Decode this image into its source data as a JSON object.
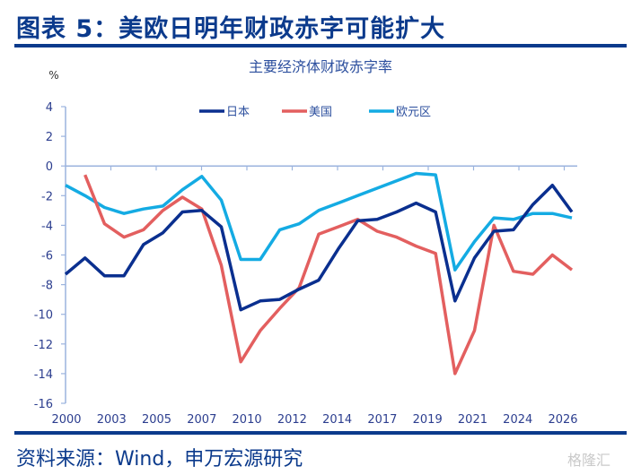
{
  "header": {
    "title": "图表 5：美欧日明年财政赤字可能扩大"
  },
  "footer": {
    "source": "资料来源：Wind，申万宏源研究",
    "watermark": "格隆汇"
  },
  "chart_data": {
    "type": "line",
    "title": "主要经济体财政赤字率",
    "ylabel": "%",
    "xlabel": "",
    "ylim": [
      -16,
      4
    ],
    "yticks": [
      4,
      2,
      0,
      -2,
      -4,
      -6,
      -8,
      -10,
      -12,
      -14,
      -16
    ],
    "xtick_labels": [
      "2000",
      "2003",
      "2005",
      "2007",
      "2010",
      "2012",
      "2014",
      "2017",
      "2019",
      "2021",
      "2024",
      "2026"
    ],
    "legend_position": "top-center",
    "x": [
      2000,
      2001,
      2002,
      2003,
      2004,
      2005,
      2006,
      2007,
      2008,
      2009,
      2010,
      2011,
      2012,
      2013,
      2014,
      2015,
      2016,
      2017,
      2018,
      2019,
      2020,
      2021,
      2022,
      2023,
      2024,
      2025,
      2026
    ],
    "series": [
      {
        "name": "日本",
        "color": "#0a2f8f",
        "values": [
          -7.3,
          -6.2,
          -7.4,
          -7.4,
          -5.3,
          -4.5,
          -3.1,
          -3.0,
          -4.1,
          -9.7,
          -9.1,
          -9.0,
          -8.3,
          -7.7,
          -5.6,
          -3.7,
          -3.6,
          -3.1,
          -2.5,
          -3.1,
          -9.1,
          -6.2,
          -4.4,
          -4.3,
          -2.6,
          -1.3,
          -3.1
        ]
      },
      {
        "name": "美国",
        "color": "#e35f5f",
        "values": [
          null,
          -0.6,
          -3.9,
          -4.8,
          -4.3,
          -3.0,
          -2.1,
          -2.9,
          -6.7,
          -13.2,
          -11.1,
          -9.6,
          -8.2,
          -4.6,
          -4.1,
          -3.6,
          -4.4,
          -4.8,
          -5.4,
          -5.9,
          -14.0,
          -11.1,
          -4.0,
          -7.1,
          -7.3,
          -6.0,
          -7.0
        ]
      },
      {
        "name": "欧元区",
        "color": "#14abe3",
        "values": [
          -1.3,
          -2.0,
          -2.8,
          -3.2,
          -2.9,
          -2.7,
          -1.6,
          -0.7,
          -2.3,
          -6.3,
          -6.3,
          -4.3,
          -3.9,
          -3.0,
          -2.5,
          -2.0,
          -1.5,
          -1.0,
          -0.5,
          -0.6,
          -7.0,
          -5.1,
          -3.5,
          -3.6,
          -3.2,
          -3.2,
          -3.5
        ]
      }
    ]
  }
}
